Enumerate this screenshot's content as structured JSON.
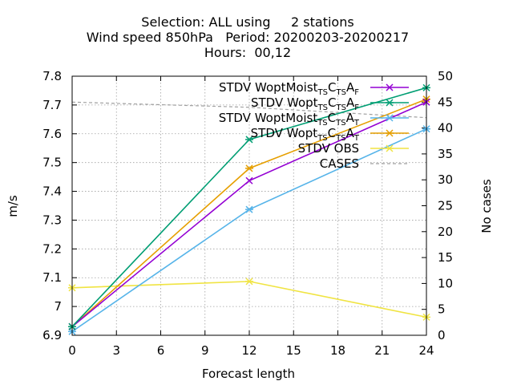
{
  "chart_data": {
    "type": "line",
    "title_lines": [
      "Selection: ALL using     2 stations",
      "Wind speed 850hPa   Period: 20200203-20200217",
      "Hours:  00,12"
    ],
    "xlabel": "Forecast length",
    "ylabel": "m/s",
    "y2label": "No cases",
    "xlim": [
      0,
      24
    ],
    "ylim": [
      6.9,
      7.8
    ],
    "y2lim": [
      0,
      50
    ],
    "xticks": [
      0,
      3,
      6,
      9,
      12,
      15,
      18,
      21,
      24
    ],
    "yticks": [
      "6.9",
      "7",
      "7.1",
      "7.2",
      "7.3",
      "7.4",
      "7.5",
      "7.6",
      "7.7",
      "7.8"
    ],
    "y2ticks": [
      0,
      5,
      10,
      15,
      20,
      25,
      30,
      35,
      40,
      45,
      50
    ],
    "grid": true,
    "legend_position": "top-right",
    "x": [
      0,
      12,
      24
    ],
    "series": [
      {
        "name_main": "STDV WoptMoist",
        "name_sub": "TS",
        "name_mid": "C",
        "name_sub2": "TS",
        "name_mid2": "A",
        "name_sub3": "F",
        "color": "#9400d3",
        "marker": "x",
        "values": [
          6.93,
          7.437,
          7.71
        ]
      },
      {
        "name_main": "STDV Wopt",
        "name_sub": "TS",
        "name_mid": "C",
        "name_sub2": "TS",
        "name_mid2": "A",
        "name_sub3": "F",
        "color": "#009e73",
        "marker": "asterisk",
        "values": [
          6.93,
          7.58,
          7.76
        ]
      },
      {
        "name_main": "STDV WoptMoist",
        "name_sub": "TS",
        "name_mid": "C",
        "name_sub2": "TS",
        "name_mid2": "A",
        "name_sub3": "T",
        "color": "#56b4e9",
        "marker": "asterisk",
        "values": [
          6.913,
          7.337,
          7.617
        ]
      },
      {
        "name_main": "STDV Wopt",
        "name_sub": "TS",
        "name_mid": "C",
        "name_sub2": "TS",
        "name_mid2": "A",
        "name_sub3": "T",
        "color": "#e69f00",
        "marker": "asterisk",
        "values": [
          6.93,
          7.48,
          7.72
        ]
      },
      {
        "name_main": "STDV OBS",
        "color": "#f0e442",
        "marker": "asterisk",
        "values": [
          7.065,
          7.087,
          6.963
        ]
      },
      {
        "name_main": "CASES",
        "color": "#a0a0a0",
        "dashed": true,
        "axis": "y2",
        "values": [
          45,
          44,
          42
        ]
      }
    ]
  }
}
